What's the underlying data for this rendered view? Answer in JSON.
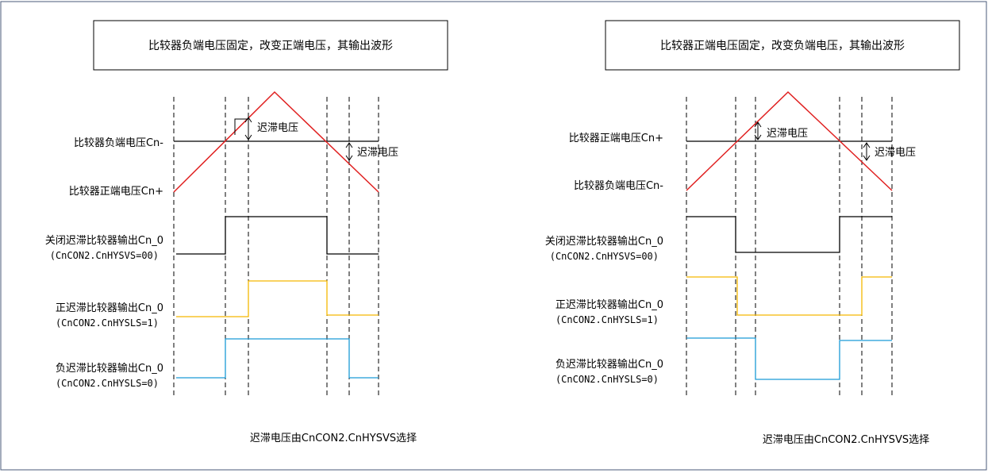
{
  "panels": [
    {
      "title": "比较器负端电压固定，改变正端电压，其输出波形",
      "labels": {
        "ref": "比较器负端电压Cn-",
        "ramp": "比较器正端电压Cn+",
        "out_off": "关闭迟滞比较器输出Cn_0",
        "out_off_sub": "(CnCON2.CnHYSVS=00)",
        "out_pos": "正迟滞比较器输出Cn_0",
        "out_pos_sub": "(CnCON2.CnHYSLS=1)",
        "out_neg": "负迟滞比较器输出Cn_0",
        "out_neg_sub": "(CnCON2.CnHYSLS=0)"
      },
      "hysteresis_label_1": "迟滞电压",
      "hysteresis_label_2": "迟滞电压",
      "footnote": "迟滞电压由CnCON2.CnHYSVS选择"
    },
    {
      "title": "比较器正端电压固定，改变负端电压，其输出波形",
      "labels": {
        "ref": "比较器正端电压Cn+",
        "ramp": "比较器负端电压Cn-",
        "out_off": "关闭迟滞比较器输出Cn_0",
        "out_off_sub": "(CnCON2.CnHYSVS=00)",
        "out_pos": "正迟滞比较器输出Cn_0",
        "out_pos_sub": "(CnCON2.CnHYSLS=1)",
        "out_neg": "负迟滞比较器输出Cn_0",
        "out_neg_sub": "(CnCON2.CnHYSLS=0)"
      },
      "hysteresis_label_1": "迟滞电压",
      "hysteresis_label_2": "迟滞电压",
      "footnote": "迟滞电压由CnCON2.CnHYSVS选择"
    }
  ],
  "colors": {
    "ramp": "#e02020",
    "reference": "#000000",
    "output_off": "#000000",
    "output_pos": "#f5b800",
    "output_neg": "#1a9ad6",
    "guides": "#000000",
    "frame": "#4a5a78"
  }
}
